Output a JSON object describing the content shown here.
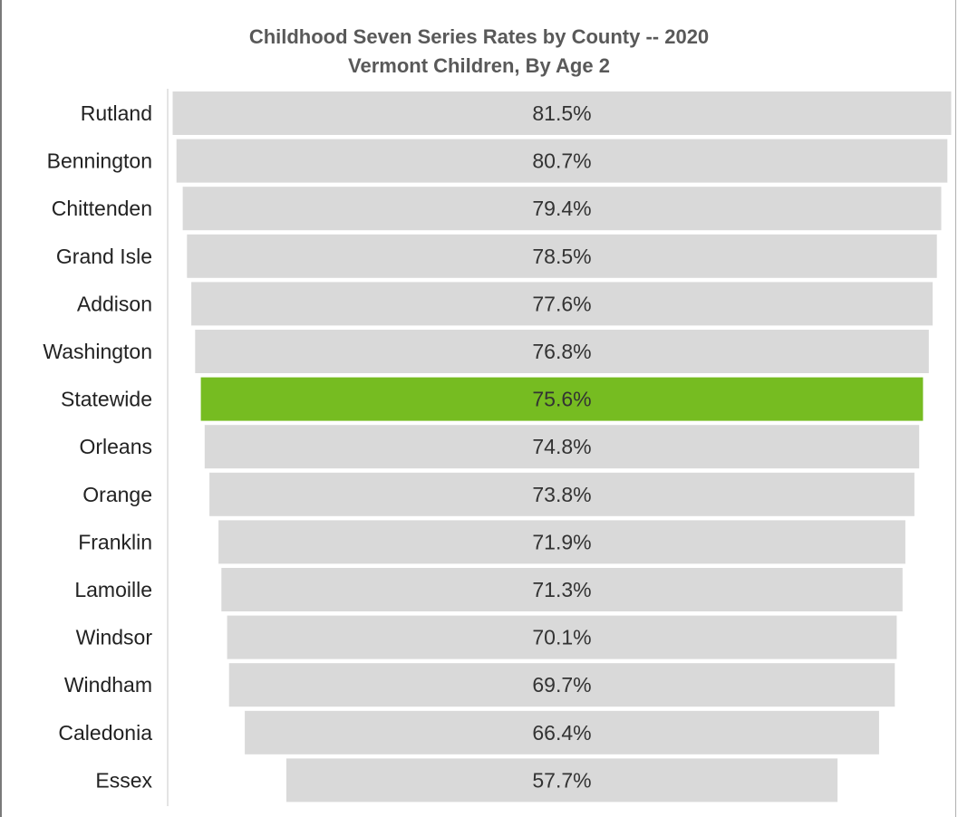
{
  "chart_data": {
    "type": "bar",
    "subtype": "funnel",
    "title": "Childhood Seven Series Rates by County -- 2020",
    "subtitle": "Vermont Children, By Age 2",
    "categories": [
      "Rutland",
      "Bennington",
      "Chittenden",
      "Grand Isle",
      "Addison",
      "Washington",
      "Statewide",
      "Orleans",
      "Orange",
      "Franklin",
      "Lamoille",
      "Windsor",
      "Windham",
      "Caledonia",
      "Essex"
    ],
    "values": [
      81.5,
      80.7,
      79.4,
      78.5,
      77.6,
      76.8,
      75.6,
      74.8,
      73.8,
      71.9,
      71.3,
      70.1,
      69.7,
      66.4,
      57.7
    ],
    "value_labels": [
      "81.5%",
      "80.7%",
      "79.4%",
      "78.5%",
      "77.6%",
      "76.8%",
      "75.6%",
      "74.8%",
      "73.8%",
      "71.9%",
      "71.3%",
      "70.1%",
      "69.7%",
      "66.4%",
      "57.7%"
    ],
    "unit": "%",
    "highlight_category": "Statewide",
    "colors": {
      "bar": "#d9d9d9",
      "highlight": "#76bc21",
      "title": "#595959",
      "axis": "#c8c8c8"
    },
    "bar_alignment": "centered",
    "grid": false,
    "legend": "none"
  }
}
